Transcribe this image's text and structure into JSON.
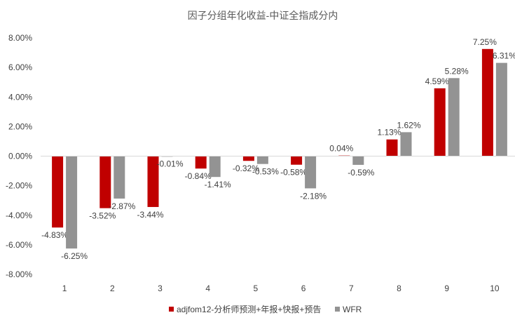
{
  "chart_data": {
    "type": "bar",
    "title": "因子分组年化收益-中证全指成分内",
    "categories": [
      "1",
      "2",
      "3",
      "4",
      "5",
      "6",
      "7",
      "8",
      "9",
      "10"
    ],
    "series": [
      {
        "name": "adjfom12-分析师预测+年报+快报+预告",
        "color": "#C00000",
        "values": [
          -4.83,
          -3.52,
          -3.44,
          -0.84,
          -0.32,
          -0.58,
          0.04,
          1.13,
          4.59,
          7.25
        ],
        "labels": [
          "-4.83%",
          "-3.52%",
          "-3.44%",
          "-0.84%",
          "-0.32%",
          "-0.58%",
          "0.04%",
          "1.13%",
          "4.59%",
          "7.25%"
        ]
      },
      {
        "name": "WFR",
        "color": "#939393",
        "values": [
          -6.25,
          -2.87,
          -0.01,
          -1.41,
          -0.53,
          -2.18,
          -0.59,
          1.62,
          5.28,
          6.31
        ],
        "labels": [
          "-6.25%",
          "-2.87%",
          "-0.01%",
          "-1.41%",
          "-0.53%",
          "-2.18%",
          "-0.59%",
          "1.62%",
          "5.28%",
          "6.31%"
        ]
      }
    ],
    "ylim": [
      -8,
      8
    ],
    "yticks": [
      "-8.00%",
      "-6.00%",
      "-4.00%",
      "-2.00%",
      "0.00%",
      "2.00%",
      "4.00%",
      "6.00%",
      "8.00%"
    ],
    "grid": false,
    "legend": "bottom"
  }
}
